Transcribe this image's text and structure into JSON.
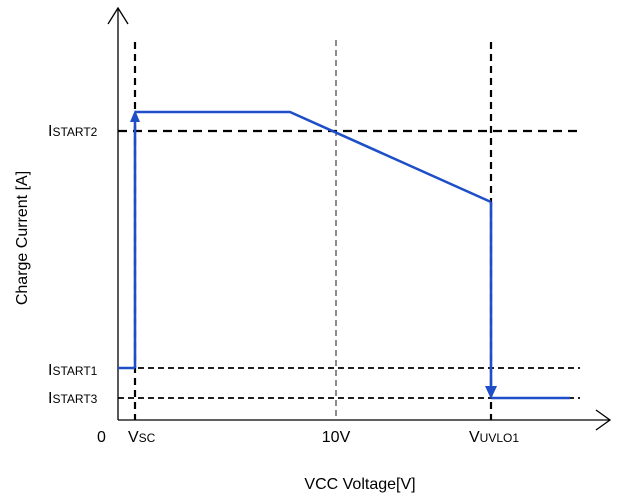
{
  "diagram": {
    "y_axis_label": "Charge Current [A]",
    "x_axis_label": "VCC Voltage[V]",
    "origin_label": "0",
    "x_markers": [
      {
        "main": "V",
        "sub": "SC"
      },
      {
        "main": "10V",
        "sub": ""
      },
      {
        "main": "V",
        "sub": "UVLO1"
      }
    ],
    "y_markers": [
      {
        "main": "I",
        "sub": "START2"
      },
      {
        "main": "I",
        "sub": "START1"
      },
      {
        "main": "I",
        "sub": "START3"
      }
    ],
    "colors": {
      "curve": "#1f4fc8",
      "axes": "#000000",
      "guides": "#000000"
    }
  }
}
